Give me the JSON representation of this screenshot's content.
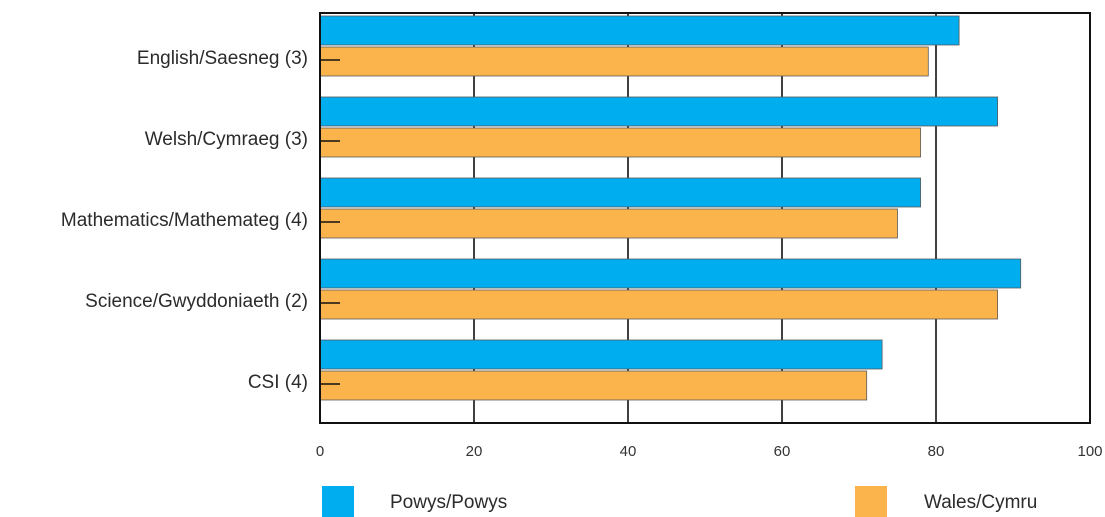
{
  "chart_data": {
    "type": "bar",
    "orientation": "horizontal",
    "categories": [
      "English/Saesneg (3)",
      "Welsh/Cymraeg (3)",
      "Mathematics/Mathemateg (4)",
      "Science/Gwyddoniaeth (2)",
      "CSI (4)"
    ],
    "series": [
      {
        "name": "Powys/Powys",
        "color": "#00aeef",
        "values": [
          83,
          88,
          78,
          91,
          73
        ]
      },
      {
        "name": "Wales/Cymru",
        "color": "#fbb44c",
        "values": [
          79,
          78,
          75,
          88,
          71
        ]
      }
    ],
    "xlim": [
      0,
      100
    ],
    "xticks": [
      "0",
      "20",
      "40",
      "60",
      "80",
      "100"
    ],
    "grid": true,
    "legend": "bottom"
  }
}
